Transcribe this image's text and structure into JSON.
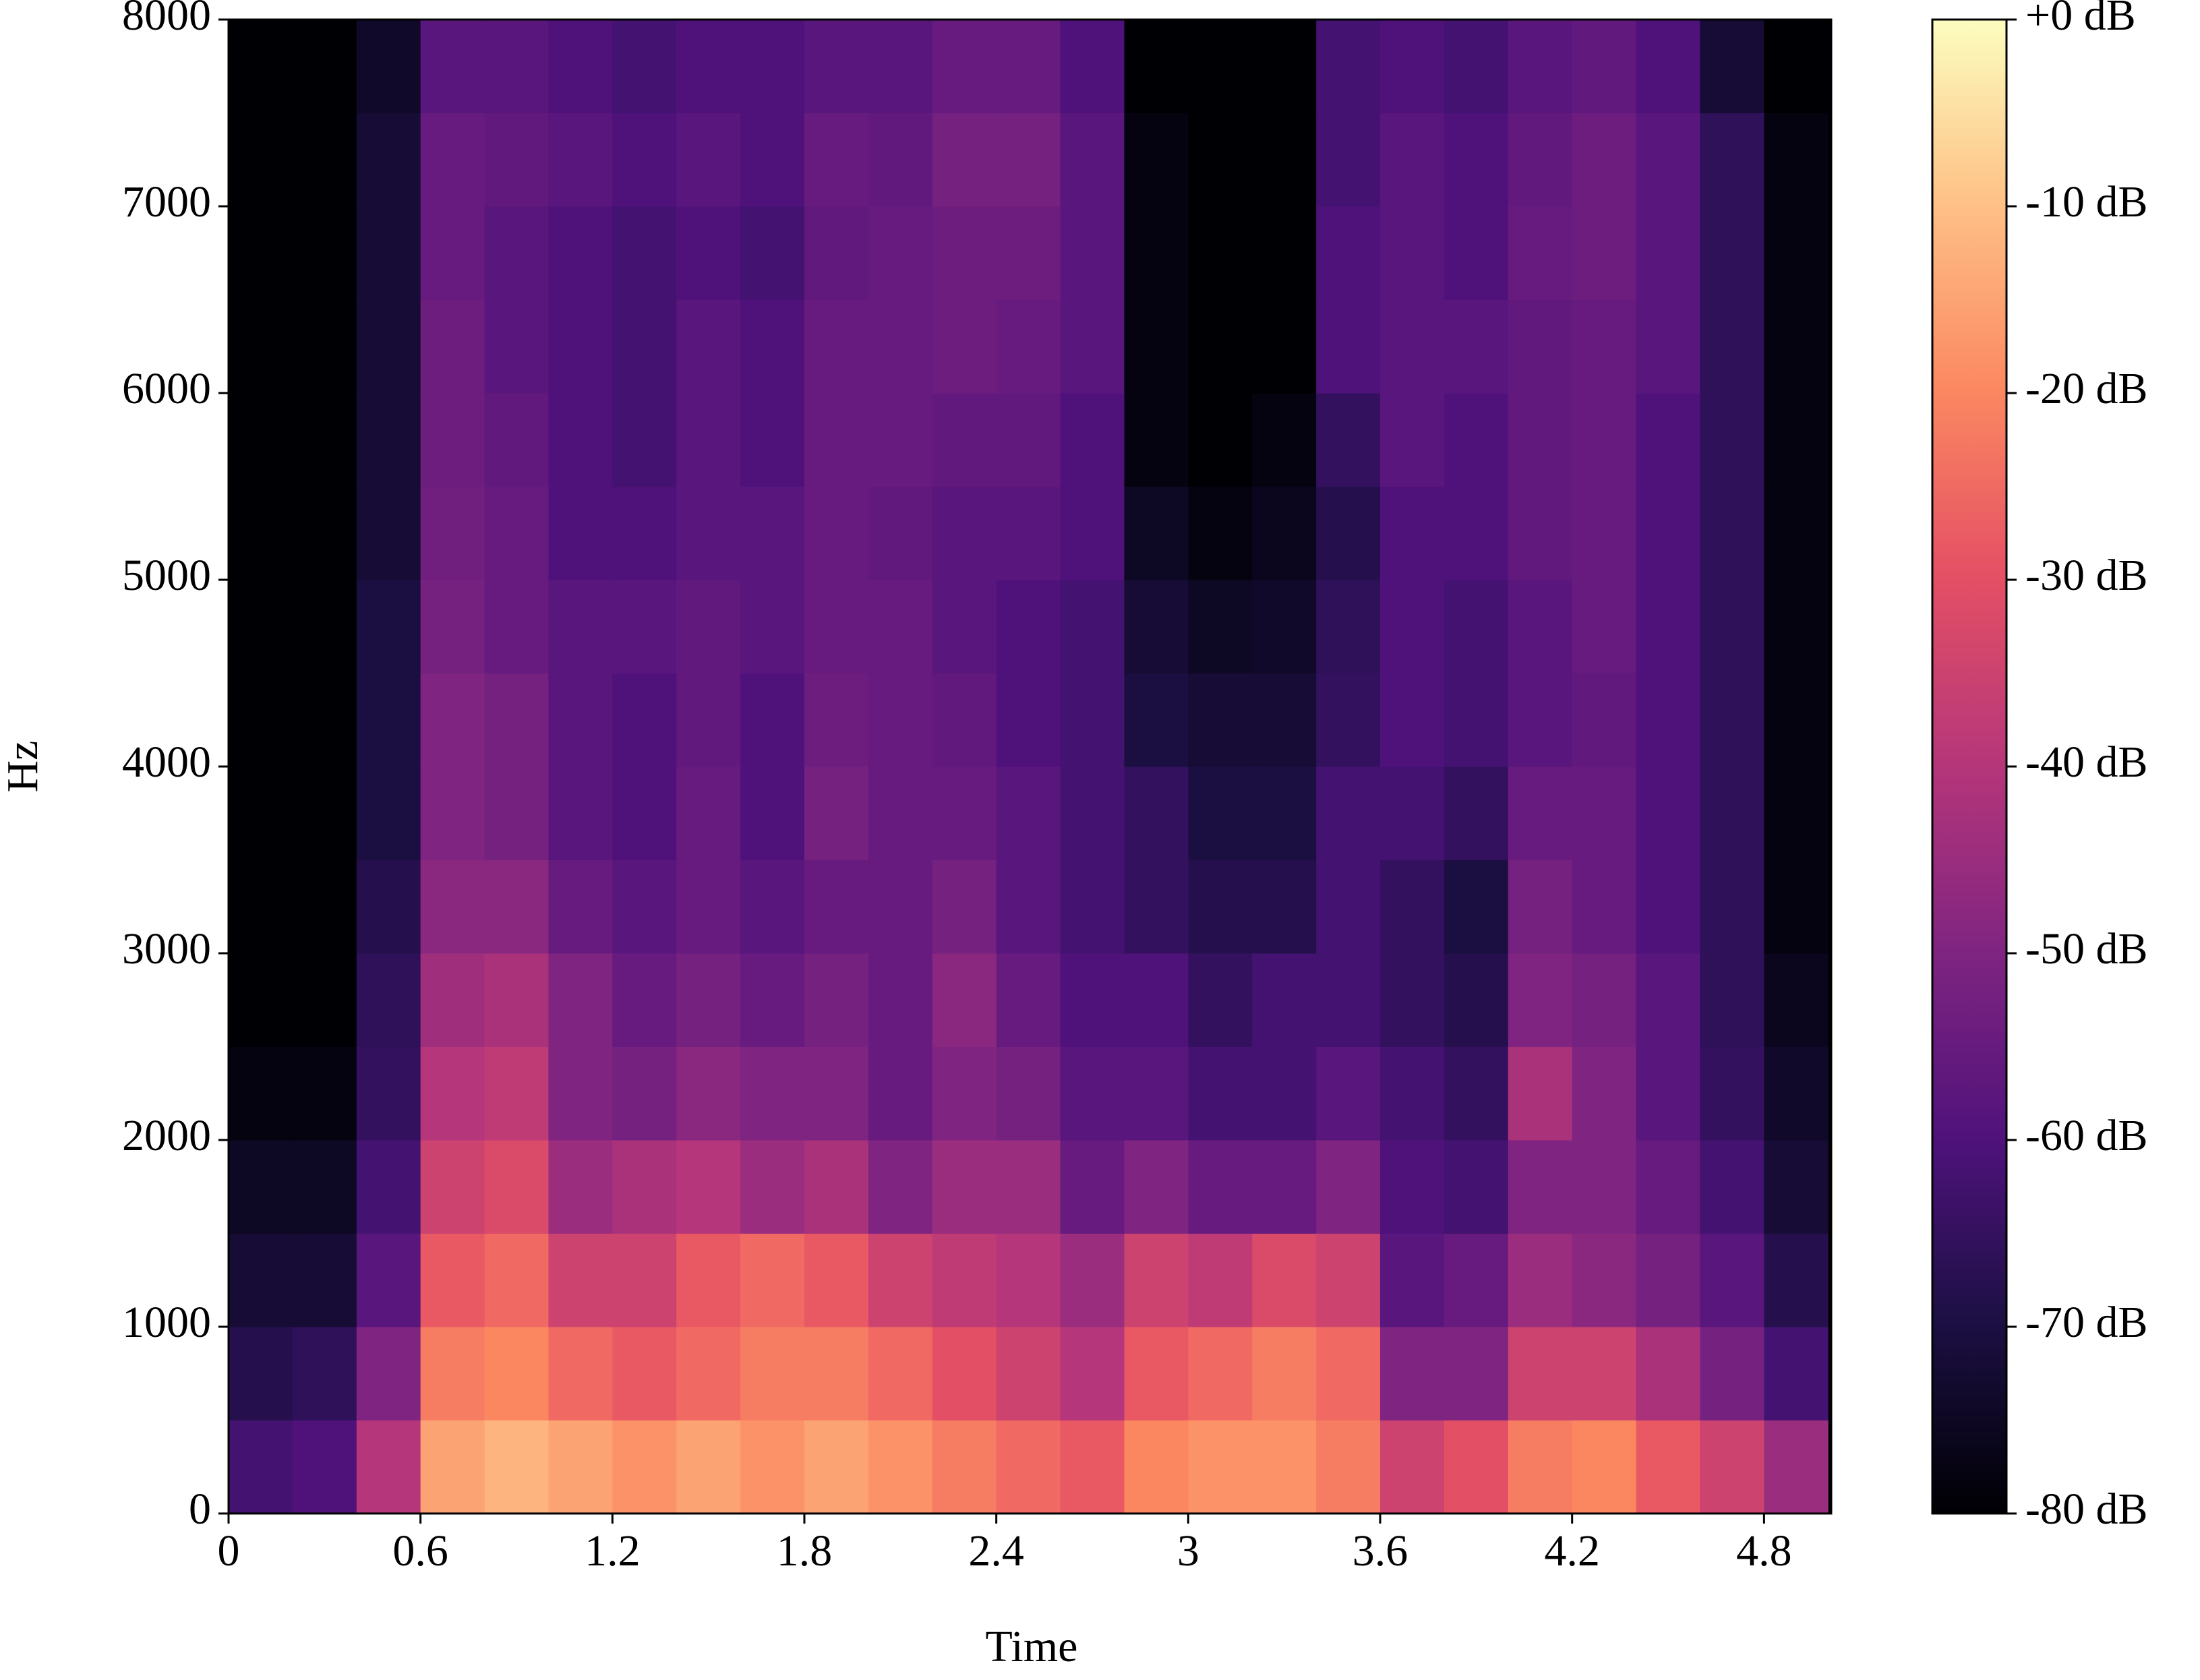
{
  "chart_data": {
    "type": "heatmap",
    "colormap": "magma",
    "xlabel": "Time",
    "ylabel": "Hz",
    "xlim": [
      0,
      5.01
    ],
    "ylim": [
      0,
      8000
    ],
    "xticks": [
      0,
      0.6,
      1.2,
      1.8,
      2.4,
      3,
      3.6,
      4.2,
      4.8
    ],
    "yticks": [
      0,
      1000,
      2000,
      3000,
      4000,
      5000,
      6000,
      7000,
      8000
    ],
    "x_bins": [
      0,
      0.2,
      0.4,
      0.6,
      0.8,
      1.0,
      1.2,
      1.4,
      1.6,
      1.8,
      2.0,
      2.2,
      2.4,
      2.6,
      2.8,
      3.0,
      3.2,
      3.4,
      3.6,
      3.8,
      4.0,
      4.2,
      4.4,
      4.6,
      4.8,
      5.0
    ],
    "y_bins": [
      0,
      500,
      1000,
      1500,
      2000,
      2500,
      3000,
      3500,
      4000,
      4500,
      5000,
      5500,
      6000,
      6500,
      7000,
      7500,
      8000
    ],
    "values": [
      [
        -62,
        -68,
        -72,
        -75,
        -78,
        -80,
        -80,
        -80,
        -80,
        -80,
        -80,
        -80,
        -80,
        -80,
        -80,
        -80
      ],
      [
        -60,
        -66,
        -72,
        -75,
        -78,
        -80,
        -80,
        -80,
        -80,
        -80,
        -80,
        -80,
        -80,
        -80,
        -80,
        -80
      ],
      [
        -40,
        -50,
        -58,
        -62,
        -65,
        -66,
        -68,
        -70,
        -70,
        -70,
        -72,
        -72,
        -72,
        -72,
        -72,
        -74
      ],
      [
        -15,
        -22,
        -28,
        -35,
        -40,
        -44,
        -48,
        -50,
        -50,
        -52,
        -53,
        -54,
        -54,
        -55,
        -55,
        -58
      ],
      [
        -12,
        -20,
        -25,
        -32,
        -38,
        -42,
        -48,
        -52,
        -52,
        -55,
        -55,
        -56,
        -58,
        -58,
        -56,
        -58
      ],
      [
        -15,
        -25,
        -35,
        -45,
        -50,
        -50,
        -55,
        -58,
        -58,
        -58,
        -60,
        -60,
        -60,
        -60,
        -58,
        -60
      ],
      [
        -18,
        -28,
        -35,
        -42,
        -52,
        -55,
        -58,
        -60,
        -60,
        -58,
        -60,
        -62,
        -62,
        -62,
        -60,
        -62
      ],
      [
        -15,
        -25,
        -28,
        -40,
        -48,
        -52,
        -55,
        -55,
        -56,
        -56,
        -58,
        -58,
        -58,
        -60,
        -58,
        -60
      ],
      [
        -18,
        -22,
        -25,
        -45,
        -50,
        -55,
        -58,
        -60,
        -60,
        -58,
        -58,
        -60,
        -60,
        -62,
        -60,
        -60
      ],
      [
        -15,
        -22,
        -28,
        -42,
        -50,
        -52,
        -55,
        -52,
        -54,
        -55,
        -55,
        -55,
        -55,
        -56,
        -55,
        -58
      ],
      [
        -18,
        -25,
        -35,
        -50,
        -55,
        -55,
        -55,
        -55,
        -55,
        -55,
        -56,
        -55,
        -55,
        -55,
        -56,
        -58
      ],
      [
        -22,
        -30,
        -38,
        -45,
        -50,
        -48,
        -52,
        -55,
        -56,
        -58,
        -58,
        -56,
        -54,
        -54,
        -52,
        -55
      ],
      [
        -25,
        -35,
        -40,
        -45,
        -52,
        -55,
        -58,
        -58,
        -60,
        -60,
        -58,
        -56,
        -55,
        -54,
        -52,
        -55
      ],
      [
        -28,
        -40,
        -45,
        -55,
        -58,
        -60,
        -62,
        -62,
        -62,
        -62,
        -60,
        -60,
        -58,
        -58,
        -58,
        -60
      ],
      [
        -20,
        -28,
        -35,
        -50,
        -58,
        -60,
        -65,
        -65,
        -70,
        -72,
        -75,
        -78,
        -78,
        -78,
        -78,
        -80
      ],
      [
        -18,
        -25,
        -38,
        -55,
        -62,
        -65,
        -68,
        -70,
        -72,
        -75,
        -78,
        -80,
        -80,
        -80,
        -80,
        -80
      ],
      [
        -18,
        -22,
        -32,
        -55,
        -62,
        -62,
        -68,
        -70,
        -72,
        -74,
        -76,
        -78,
        -80,
        -80,
        -80,
        -80
      ],
      [
        -22,
        -25,
        -35,
        -50,
        -58,
        -62,
        -62,
        -62,
        -65,
        -66,
        -68,
        -65,
        -60,
        -60,
        -62,
        -62
      ],
      [
        -35,
        -50,
        -58,
        -60,
        -62,
        -65,
        -65,
        -62,
        -60,
        -60,
        -60,
        -58,
        -58,
        -58,
        -58,
        -60
      ],
      [
        -30,
        -50,
        -55,
        -62,
        -65,
        -68,
        -70,
        -65,
        -62,
        -62,
        -60,
        -60,
        -58,
        -60,
        -60,
        -62
      ],
      [
        -22,
        -35,
        -45,
        -50,
        -42,
        -50,
        -52,
        -55,
        -58,
        -58,
        -56,
        -56,
        -56,
        -55,
        -56,
        -58
      ],
      [
        -20,
        -35,
        -48,
        -50,
        -50,
        -52,
        -55,
        -55,
        -56,
        -55,
        -55,
        -55,
        -55,
        -54,
        -54,
        -56
      ],
      [
        -28,
        -42,
        -52,
        -55,
        -58,
        -58,
        -60,
        -60,
        -60,
        -60,
        -60,
        -60,
        -58,
        -58,
        -58,
        -60
      ],
      [
        -35,
        -52,
        -58,
        -62,
        -65,
        -66,
        -66,
        -66,
        -66,
        -66,
        -66,
        -66,
        -66,
        -66,
        -66,
        -72
      ],
      [
        -45,
        -62,
        -68,
        -72,
        -74,
        -76,
        -78,
        -78,
        -78,
        -78,
        -78,
        -78,
        -78,
        -78,
        -78,
        -80
      ]
    ],
    "clim": [
      -80,
      0
    ],
    "cticks": [
      {
        "value": 0,
        "label": "+0 dB"
      },
      {
        "value": -10,
        "label": "-10 dB"
      },
      {
        "value": -20,
        "label": "-20 dB"
      },
      {
        "value": -30,
        "label": "-30 dB"
      },
      {
        "value": -40,
        "label": "-40 dB"
      },
      {
        "value": -50,
        "label": "-50 dB"
      },
      {
        "value": -60,
        "label": "-60 dB"
      },
      {
        "value": -70,
        "label": "-70 dB"
      },
      {
        "value": -80,
        "label": "-80 dB"
      }
    ]
  }
}
